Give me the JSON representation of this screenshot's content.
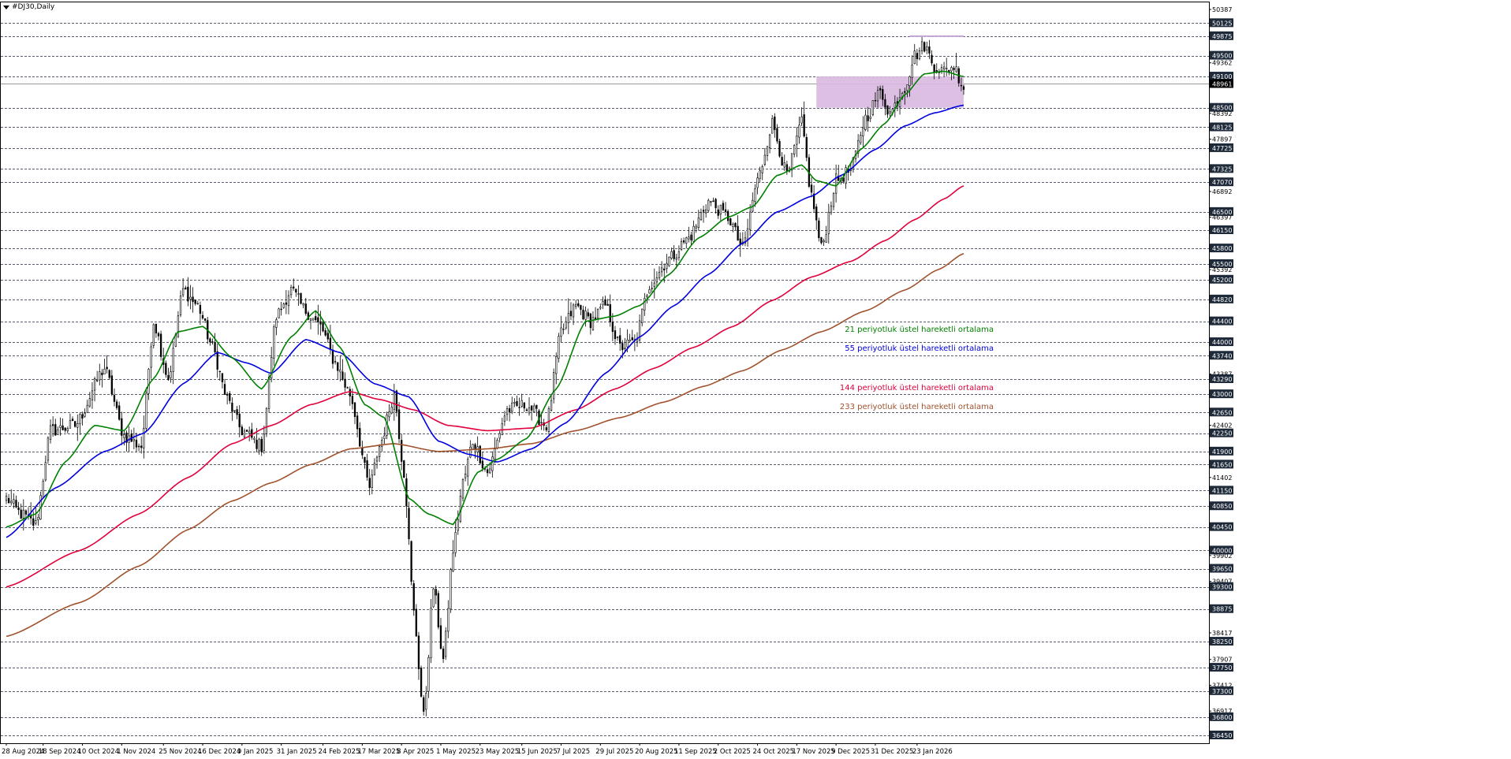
{
  "header": {
    "symbol_title": "#DJ30,Daily"
  },
  "colors": {
    "candle": "#000000",
    "ema21": "#008000",
    "ema55": "#0000e0",
    "ema144": "#e0003c",
    "ema233": "#a0522d",
    "zone": "#d8b8e0",
    "grid": "#1e2a3a"
  },
  "chart_data": {
    "type": "candlestick",
    "instrument": "#DJ30",
    "timeframe": "Daily",
    "ylim": [
      36450,
      50387
    ],
    "price_levels": [
      50125,
      49875,
      49500,
      49100,
      48500,
      48125,
      47725,
      47325,
      47070,
      46500,
      46150,
      45800,
      45500,
      45200,
      44820,
      44400,
      44000,
      43740,
      43290,
      43000,
      42650,
      42250,
      41900,
      41650,
      41150,
      40850,
      40450,
      40000,
      39650,
      39300,
      38875,
      38250,
      37750,
      37300,
      36800,
      36450
    ],
    "right_axis_labels": [
      "50387",
      "50125",
      "49875",
      "49500",
      "49362",
      "49100",
      "48961",
      "48500",
      "48392",
      "48125",
      "47897",
      "47725",
      "47325",
      "47070",
      "46892",
      "46500",
      "46397",
      "46150",
      "45800",
      "45500",
      "45392",
      "45200",
      "44820",
      "44400",
      "44000",
      "43740",
      "43387",
      "43290",
      "43000",
      "42650",
      "42402",
      "42250",
      "41900",
      "41650",
      "41402",
      "41150",
      "40850",
      "40450",
      "40000",
      "39902",
      "39650",
      "39407",
      "39300",
      "38875",
      "38417",
      "38250",
      "37907",
      "37750",
      "37412",
      "37300",
      "36917",
      "36800",
      "36450"
    ],
    "current_price": 48961,
    "current_price_label": "48961",
    "x_labels": [
      "28 Aug 2024",
      "18 Sep 2024",
      "10 Oct 2024",
      "1 Nov 2024",
      "25 Nov 2024",
      "16 Dec 2024",
      "9 Jan 2025",
      "31 Jan 2025",
      "24 Feb 2025",
      "17 Mar 2025",
      "8 Apr 2025",
      "1 May 2025",
      "23 May 2025",
      "15 Jun 2025",
      "7 Jul 2025",
      "29 Jul 2025",
      "20 Aug 2025",
      "11 Sep 2025",
      "2 Oct 2025",
      "24 Oct 2025",
      "17 Nov 2025",
      "9 Dec 2025",
      "31 Dec 2025",
      "23 Jan 2026"
    ],
    "close_anchors": [
      [
        0,
        41000
      ],
      [
        6,
        40700
      ],
      [
        12,
        40500
      ],
      [
        18,
        42300
      ],
      [
        28,
        42400
      ],
      [
        40,
        43500
      ],
      [
        48,
        42200
      ],
      [
        55,
        42000
      ],
      [
        60,
        44400
      ],
      [
        66,
        43300
      ],
      [
        72,
        45000
      ],
      [
        78,
        44700
      ],
      [
        84,
        43900
      ],
      [
        90,
        42900
      ],
      [
        96,
        42300
      ],
      [
        104,
        42000
      ],
      [
        110,
        44500
      ],
      [
        116,
        45000
      ],
      [
        122,
        44600
      ],
      [
        128,
        44300
      ],
      [
        134,
        43600
      ],
      [
        140,
        43000
      ],
      [
        148,
        41200
      ],
      [
        152,
        42000
      ],
      [
        158,
        43000
      ],
      [
        162,
        41500
      ],
      [
        166,
        38800
      ],
      [
        170,
        36800
      ],
      [
        174,
        39300
      ],
      [
        178,
        37900
      ],
      [
        182,
        40000
      ],
      [
        186,
        41300
      ],
      [
        190,
        42100
      ],
      [
        196,
        41500
      ],
      [
        204,
        42700
      ],
      [
        212,
        42800
      ],
      [
        220,
        42400
      ],
      [
        226,
        44200
      ],
      [
        232,
        44700
      ],
      [
        238,
        44400
      ],
      [
        244,
        44700
      ],
      [
        250,
        43900
      ],
      [
        256,
        44000
      ],
      [
        262,
        45100
      ],
      [
        270,
        45600
      ],
      [
        278,
        46000
      ],
      [
        286,
        46700
      ],
      [
        294,
        46400
      ],
      [
        300,
        45800
      ],
      [
        306,
        47100
      ],
      [
        312,
        48200
      ],
      [
        318,
        47200
      ],
      [
        324,
        48200
      ],
      [
        328,
        46800
      ],
      [
        332,
        45800
      ],
      [
        338,
        47100
      ],
      [
        344,
        47300
      ],
      [
        350,
        48300
      ],
      [
        356,
        48800
      ],
      [
        360,
        48400
      ],
      [
        366,
        48900
      ],
      [
        370,
        49500
      ],
      [
        374,
        49700
      ],
      [
        378,
        49300
      ],
      [
        382,
        49200
      ],
      [
        386,
        49300
      ],
      [
        390,
        48900
      ]
    ],
    "ema21_anchors": [
      [
        0,
        40450
      ],
      [
        12,
        40700
      ],
      [
        24,
        41700
      ],
      [
        36,
        42400
      ],
      [
        48,
        42300
      ],
      [
        60,
        43300
      ],
      [
        70,
        44200
      ],
      [
        80,
        44300
      ],
      [
        92,
        43700
      ],
      [
        104,
        43100
      ],
      [
        116,
        44100
      ],
      [
        126,
        44600
      ],
      [
        136,
        43900
      ],
      [
        146,
        42800
      ],
      [
        154,
        42550
      ],
      [
        164,
        41000
      ],
      [
        172,
        40700
      ],
      [
        182,
        40500
      ],
      [
        192,
        41500
      ],
      [
        200,
        41750
      ],
      [
        212,
        42150
      ],
      [
        224,
        43100
      ],
      [
        236,
        44400
      ],
      [
        248,
        44500
      ],
      [
        258,
        44700
      ],
      [
        270,
        45300
      ],
      [
        282,
        46000
      ],
      [
        294,
        46400
      ],
      [
        304,
        46600
      ],
      [
        314,
        47200
      ],
      [
        324,
        47400
      ],
      [
        330,
        47100
      ],
      [
        338,
        47000
      ],
      [
        348,
        47700
      ],
      [
        358,
        48200
      ],
      [
        366,
        48750
      ],
      [
        374,
        49150
      ],
      [
        382,
        49200
      ],
      [
        390,
        49100
      ]
    ],
    "ema55_anchors": [
      [
        0,
        40250
      ],
      [
        20,
        41200
      ],
      [
        40,
        41900
      ],
      [
        56,
        42250
      ],
      [
        72,
        43200
      ],
      [
        86,
        43800
      ],
      [
        98,
        43600
      ],
      [
        108,
        43400
      ],
      [
        122,
        44050
      ],
      [
        136,
        43800
      ],
      [
        150,
        43200
      ],
      [
        164,
        42950
      ],
      [
        176,
        42100
      ],
      [
        188,
        41850
      ],
      [
        200,
        41700
      ],
      [
        214,
        41950
      ],
      [
        228,
        42450
      ],
      [
        244,
        43400
      ],
      [
        258,
        44100
      ],
      [
        272,
        44700
      ],
      [
        286,
        45300
      ],
      [
        300,
        45900
      ],
      [
        314,
        46500
      ],
      [
        328,
        46800
      ],
      [
        340,
        47200
      ],
      [
        354,
        47700
      ],
      [
        366,
        48150
      ],
      [
        378,
        48400
      ],
      [
        390,
        48550
      ]
    ],
    "ema144_anchors": [
      [
        0,
        39300
      ],
      [
        30,
        40000
      ],
      [
        54,
        40700
      ],
      [
        74,
        41400
      ],
      [
        92,
        42050
      ],
      [
        108,
        42400
      ],
      [
        124,
        42800
      ],
      [
        140,
        43050
      ],
      [
        152,
        42900
      ],
      [
        166,
        42700
      ],
      [
        180,
        42400
      ],
      [
        196,
        42300
      ],
      [
        214,
        42350
      ],
      [
        232,
        42700
      ],
      [
        248,
        43100
      ],
      [
        264,
        43500
      ],
      [
        280,
        43900
      ],
      [
        296,
        44300
      ],
      [
        312,
        44800
      ],
      [
        328,
        45250
      ],
      [
        344,
        45550
      ],
      [
        358,
        45950
      ],
      [
        370,
        46350
      ],
      [
        382,
        46750
      ],
      [
        390,
        47000
      ]
    ],
    "ema233_anchors": [
      [
        0,
        38350
      ],
      [
        30,
        39000
      ],
      [
        54,
        39700
      ],
      [
        74,
        40400
      ],
      [
        92,
        40950
      ],
      [
        108,
        41300
      ],
      [
        124,
        41650
      ],
      [
        140,
        41950
      ],
      [
        158,
        42050
      ],
      [
        176,
        41900
      ],
      [
        196,
        41950
      ],
      [
        214,
        42050
      ],
      [
        232,
        42300
      ],
      [
        250,
        42550
      ],
      [
        268,
        42850
      ],
      [
        284,
        43150
      ],
      [
        300,
        43450
      ],
      [
        316,
        43850
      ],
      [
        332,
        44200
      ],
      [
        350,
        44600
      ],
      [
        366,
        45000
      ],
      [
        380,
        45400
      ],
      [
        390,
        45700
      ]
    ],
    "zone": {
      "x0_idx": 330,
      "x1_idx": 390,
      "y_low": 48500,
      "y_high": 49100,
      "x_top0_idx": 368,
      "top_level": 49875
    },
    "legend": [
      {
        "label": "21 periyotluk üstel hareketli ortalama",
        "color": "#008000",
        "price": 44240
      },
      {
        "label": "55 periyotluk üstel hareketli ortalama",
        "color": "#0000e0",
        "price": 43880
      },
      {
        "label": "144 periyotluk üstel hareketli ortalama",
        "color": "#e0003c",
        "price": 43120
      },
      {
        "label": "233 periyotluk üstel hareketli ortalama",
        "color": "#a0522d",
        "price": 42760
      }
    ],
    "grid": true
  }
}
